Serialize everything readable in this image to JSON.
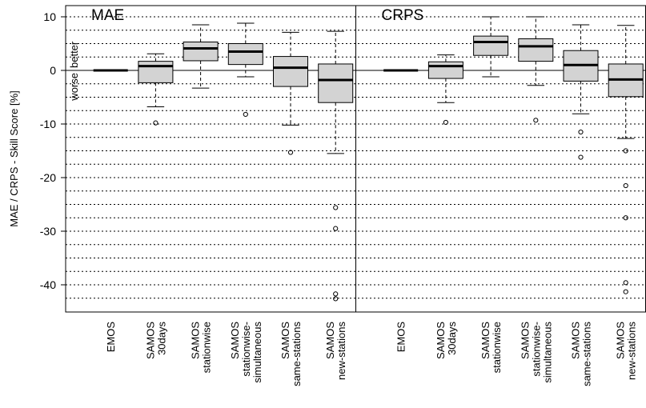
{
  "chart_data": {
    "type": "box",
    "ylabel": "MAE / CRPS - Skill Score [%]",
    "ylim": [
      -45,
      11
    ],
    "yticks": [
      10,
      0,
      -10,
      -20,
      -30,
      -40
    ],
    "y_tick_labels": [
      "10",
      "0",
      "-10",
      "-20",
      "-30",
      "-40"
    ],
    "dotted_gridlines": [
      10,
      7.5,
      5,
      2.5,
      -2.5,
      -5,
      -7.5,
      -10,
      -12.5,
      -15,
      -17.5,
      -20,
      -22.5,
      -25,
      -27.5,
      -30,
      -32.5,
      -35,
      -37.5,
      -40,
      -42.5
    ],
    "reference_line": 0,
    "annotations": {
      "better": "better",
      "worse": "worse"
    },
    "categories": [
      [
        "EMOS"
      ],
      [
        "SAMOS",
        "30days"
      ],
      [
        "SAMOS",
        "stationwise"
      ],
      [
        "SAMOS",
        "stationwise-",
        "simultaneous"
      ],
      [
        "SAMOS",
        "same-stations"
      ],
      [
        "SAMOS",
        "new-stations"
      ]
    ],
    "panels": [
      {
        "title": "MAE",
        "boxes": [
          {
            "q1": 0,
            "median": 0,
            "q3": 0,
            "whisker_low": 0,
            "whisker_high": 0,
            "outliers": []
          },
          {
            "q1": -2.3,
            "median": 0.8,
            "q3": 1.7,
            "whisker_low": -6.8,
            "whisker_high": 3.1,
            "outliers": [
              -9.8
            ]
          },
          {
            "q1": 1.8,
            "median": 4.1,
            "q3": 5.3,
            "whisker_low": -3.3,
            "whisker_high": 8.5,
            "outliers": []
          },
          {
            "q1": 1.1,
            "median": 3.5,
            "q3": 5.0,
            "whisker_low": -1.2,
            "whisker_high": 8.8,
            "outliers": [
              -8.2
            ]
          },
          {
            "q1": -3.0,
            "median": 0.5,
            "q3": 2.6,
            "whisker_low": -10.2,
            "whisker_high": 7.1,
            "outliers": [
              -15.3
            ]
          },
          {
            "q1": -6.0,
            "median": -1.8,
            "q3": 1.2,
            "whisker_low": -15.5,
            "whisker_high": 7.3,
            "outliers": [
              -25.6,
              -29.5,
              -41.7,
              -42.6
            ]
          }
        ]
      },
      {
        "title": "CRPS",
        "boxes": [
          {
            "q1": 0,
            "median": 0,
            "q3": 0,
            "whisker_low": 0,
            "whisker_high": 0,
            "outliers": []
          },
          {
            "q1": -1.5,
            "median": 0.8,
            "q3": 1.6,
            "whisker_low": -6.0,
            "whisker_high": 2.9,
            "outliers": [
              -9.7
            ]
          },
          {
            "q1": 2.8,
            "median": 5.3,
            "q3": 6.4,
            "whisker_low": -1.2,
            "whisker_high": 10.0,
            "outliers": []
          },
          {
            "q1": 1.7,
            "median": 4.5,
            "q3": 5.9,
            "whisker_low": -2.8,
            "whisker_high": 10.0,
            "outliers": [
              -9.3
            ]
          },
          {
            "q1": -2.0,
            "median": 1.0,
            "q3": 3.7,
            "whisker_low": -8.1,
            "whisker_high": 8.5,
            "outliers": [
              -11.5,
              -16.2
            ]
          },
          {
            "q1": -4.9,
            "median": -1.7,
            "q3": 1.2,
            "whisker_low": -12.7,
            "whisker_high": 8.4,
            "outliers": [
              -15.0,
              -21.5,
              -27.5,
              -39.6,
              -41.3
            ]
          }
        ]
      }
    ],
    "colors": {
      "box_fill": "#d3d3d3",
      "stroke": "#000000"
    }
  }
}
